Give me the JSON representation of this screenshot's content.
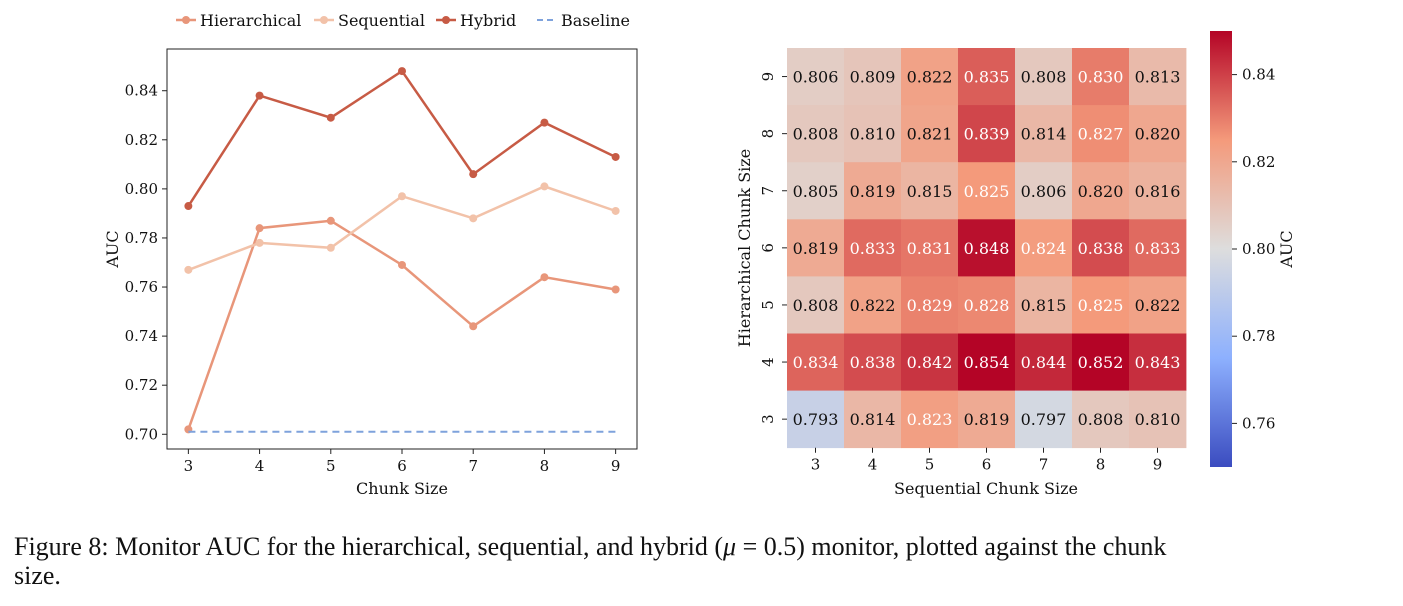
{
  "chart_data": [
    {
      "type": "line",
      "xlabel": "Chunk Size",
      "ylabel": "AUC",
      "x": [
        3,
        4,
        5,
        6,
        7,
        8,
        9
      ],
      "xlim": [
        2.7,
        9.3
      ],
      "ylim": [
        0.694,
        0.857
      ],
      "yticks": [
        "0.70",
        "0.72",
        "0.74",
        "0.76",
        "0.78",
        "0.80",
        "0.82",
        "0.84"
      ],
      "ytick_values": [
        0.7,
        0.72,
        0.74,
        0.76,
        0.78,
        0.8,
        0.82,
        0.84
      ],
      "legend_position": "top-center, outside",
      "series": [
        {
          "name": "Hierarchical",
          "color": "#e8967a",
          "style": "solid-marker",
          "values": [
            0.702,
            0.784,
            0.787,
            0.769,
            0.744,
            0.764,
            0.759
          ]
        },
        {
          "name": "Sequential",
          "color": "#f2c2a9",
          "style": "solid-marker",
          "values": [
            0.767,
            0.778,
            0.776,
            0.797,
            0.788,
            0.801,
            0.791
          ]
        },
        {
          "name": "Hybrid",
          "color": "#c75b45",
          "style": "solid-marker",
          "values": [
            0.793,
            0.838,
            0.829,
            0.848,
            0.806,
            0.827,
            0.813
          ]
        },
        {
          "name": "Baseline",
          "color": "#7ea2dc",
          "style": "dashed",
          "values": [
            0.701,
            0.701,
            0.701,
            0.701,
            0.701,
            0.701,
            0.701
          ]
        }
      ]
    },
    {
      "type": "heatmap",
      "xlabel": "Sequential Chunk Size",
      "ylabel": "Hierarchical Chunk Size",
      "x_categories": [
        "3",
        "4",
        "5",
        "6",
        "7",
        "8",
        "9"
      ],
      "y_categories_top_to_bottom": [
        "9",
        "8",
        "7",
        "6",
        "5",
        "4",
        "3"
      ],
      "rows_top_to_bottom": [
        [
          "0.806",
          "0.809",
          "0.822",
          "0.835",
          "0.808",
          "0.830",
          "0.813"
        ],
        [
          "0.808",
          "0.810",
          "0.821",
          "0.839",
          "0.814",
          "0.827",
          "0.820"
        ],
        [
          "0.805",
          "0.819",
          "0.815",
          "0.825",
          "0.806",
          "0.820",
          "0.816"
        ],
        [
          "0.819",
          "0.833",
          "0.831",
          "0.848",
          "0.824",
          "0.838",
          "0.833"
        ],
        [
          "0.808",
          "0.822",
          "0.829",
          "0.828",
          "0.815",
          "0.825",
          "0.822"
        ],
        [
          "0.834",
          "0.838",
          "0.842",
          "0.854",
          "0.844",
          "0.852",
          "0.843"
        ],
        [
          "0.793",
          "0.814",
          "0.823",
          "0.819",
          "0.797",
          "0.808",
          "0.810"
        ]
      ],
      "colormap": "coolwarm",
      "vmin": 0.75,
      "vmax": 0.85,
      "colorbar_label": "AUC",
      "colorbar_ticks": [
        "0.76",
        "0.78",
        "0.80",
        "0.82",
        "0.84"
      ],
      "colorbar_tick_values": [
        0.76,
        0.78,
        0.8,
        0.82,
        0.84
      ]
    }
  ],
  "caption": {
    "prefix": "Figure 8: Monitor AUC for the hierarchical, sequential, and hybrid (",
    "mu": "μ",
    "middle": " = 0.5) monitor, plotted against the chunk",
    "end": "size."
  }
}
